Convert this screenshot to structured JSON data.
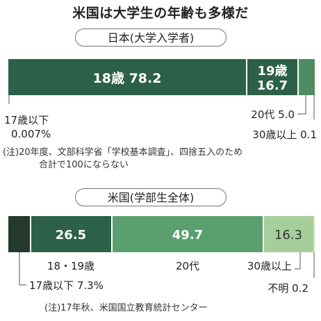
{
  "title": "米国は大学生の年齢も多様だ",
  "chart_data": [
    {
      "type": "bar",
      "stacked": true,
      "orientation": "horizontal",
      "title": "日本(大学入学者)",
      "segments": [
        {
          "name": "18歳",
          "value": 78.2,
          "label": "18歳 78.2",
          "color": "#2d6048"
        },
        {
          "name": "19歳",
          "value": 16.7,
          "label_line1": "19歳",
          "label_line2": "16.7",
          "color": "#2d6048"
        },
        {
          "name": "20代",
          "value": 5.0,
          "label": "20代 5.0",
          "color": "#4e8c62"
        },
        {
          "name": "30歳以上",
          "value": 0.1,
          "label": "30歳以上 0.1",
          "color": "#4e8c62"
        },
        {
          "name": "17歳以下",
          "value": 0.007,
          "label_line1": "17歳以下",
          "label_line2": "0.007%",
          "color": "#2d6048"
        }
      ],
      "note_line1": "(注)20年度、文部科学省「学校基本調査」、四捨五入のため",
      "note_line2": "合計で100にならない"
    },
    {
      "type": "bar",
      "stacked": true,
      "orientation": "horizontal",
      "title": "米国(学部生全体)",
      "segments": [
        {
          "name": "17歳以下",
          "value": 7.3,
          "label": "17歳以下 7.3%",
          "color": "#22392c"
        },
        {
          "name": "18・19歳",
          "value": 26.5,
          "label": "18・19歳",
          "value_label": "26.5",
          "color": "#2d6048"
        },
        {
          "name": "20代",
          "value": 49.7,
          "label": "20代",
          "value_label": "49.7",
          "color": "#5aa06e"
        },
        {
          "name": "30歳以上",
          "value": 16.3,
          "label": "30歳以上",
          "value_label": "16.3",
          "color": "#a6ce9b"
        },
        {
          "name": "不明",
          "value": 0.2,
          "label": "不明 0.2",
          "color": "#cfe3c6"
        }
      ],
      "note": "(注)17年秋、米国国立教育統計センター"
    }
  ]
}
